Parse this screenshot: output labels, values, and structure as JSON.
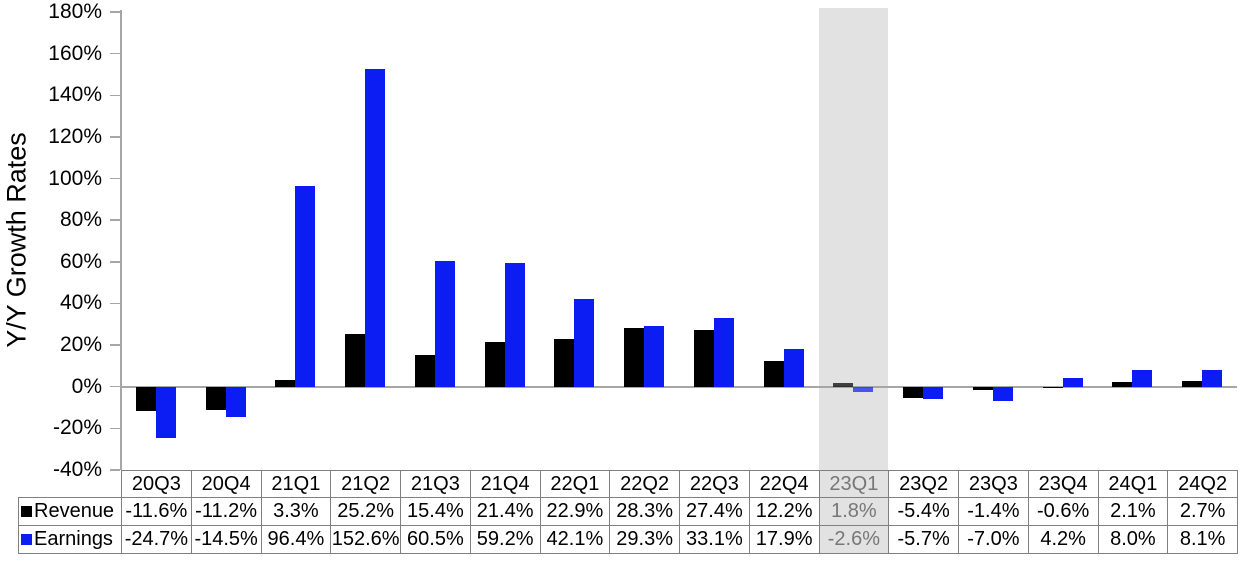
{
  "chart_data": {
    "type": "bar",
    "title": "",
    "ylabel": "Y/Y Growth Rates",
    "xlabel": "",
    "ylim": [
      -40,
      180
    ],
    "ytick_step": 20,
    "ytick_labels": [
      "180%",
      "160%",
      "140%",
      "120%",
      "100%",
      "80%",
      "60%",
      "40%",
      "20%",
      "0%",
      "-20%",
      "-40%"
    ],
    "grid": false,
    "legend_position": "table-left",
    "categories": [
      "20Q3",
      "20Q4",
      "21Q1",
      "21Q2",
      "21Q3",
      "21Q4",
      "22Q1",
      "22Q2",
      "22Q3",
      "22Q4",
      "23Q1",
      "23Q2",
      "23Q3",
      "23Q4",
      "24Q1",
      "24Q2"
    ],
    "series": [
      {
        "name": "Revenue",
        "color": "#000000",
        "values": [
          -11.6,
          -11.2,
          3.3,
          25.2,
          15.4,
          21.4,
          22.9,
          28.3,
          27.4,
          12.2,
          1.8,
          -5.4,
          -1.4,
          -0.6,
          2.1,
          2.7
        ]
      },
      {
        "name": "Earnings",
        "color": "#0b1df2",
        "values": [
          -24.7,
          -14.5,
          96.4,
          152.6,
          60.5,
          59.2,
          42.1,
          29.3,
          33.1,
          17.9,
          -2.6,
          -5.7,
          -7.0,
          4.2,
          8.0,
          8.1
        ]
      }
    ],
    "highlight": {
      "category": "23Q1",
      "index": 10,
      "band_color": "#e2e2e2",
      "dimmed_bar_opacity": 0.72
    }
  },
  "table": {
    "rows": [
      {
        "label": "Revenue",
        "marker_color": "#000000",
        "values": [
          "-11.6%",
          "-11.2%",
          "3.3%",
          "25.2%",
          "15.4%",
          "21.4%",
          "22.9%",
          "28.3%",
          "27.4%",
          "12.2%",
          "1.8%",
          "-5.4%",
          "-1.4%",
          "-0.6%",
          "2.1%",
          "2.7%"
        ]
      },
      {
        "label": "Earnings",
        "marker_color": "#0b1df2",
        "values": [
          "-24.7%",
          "-14.5%",
          "96.4%",
          "152.6%",
          "60.5%",
          "59.2%",
          "42.1%",
          "29.3%",
          "33.1%",
          "17.9%",
          "-2.6%",
          "-5.7%",
          "-7.0%",
          "4.2%",
          "8.0%",
          "8.1%"
        ]
      }
    ],
    "highlight_bg": "#e2e2e2",
    "highlight_text_color": "#777777",
    "border_color": "#808080"
  },
  "colors": {
    "axis": "#a6a6a6",
    "background": "#ffffff",
    "bar_revenue": "#000000",
    "bar_earnings": "#0b1df2"
  }
}
